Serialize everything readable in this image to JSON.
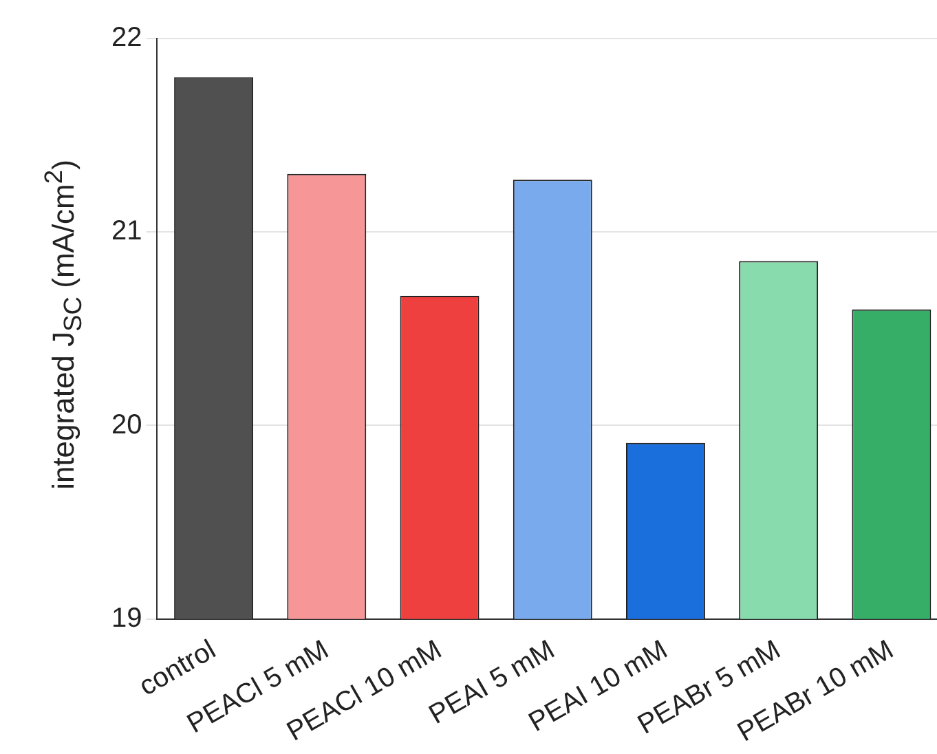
{
  "chart_data": {
    "type": "bar",
    "ylabel": "integrated J$_{SC}$ (mA/cm$^{2}$)",
    "categories": [
      "control",
      "PEACl 5 mM",
      "PEACl 10 mM",
      "PEAI 5 mM",
      "PEAI 10 mM",
      "PEABr 5 mM",
      "PEABr 10 mM"
    ],
    "values": [
      21.8,
      21.3,
      20.67,
      21.27,
      19.91,
      20.85,
      20.6
    ],
    "colors": [
      "#505050",
      "#f79696",
      "#ef4040",
      "#79aaee",
      "#1a6fdd",
      "#88dbad",
      "#36ae68"
    ],
    "ylim": [
      19,
      22
    ],
    "yticks": [
      19,
      20,
      21,
      22
    ],
    "grid": "y",
    "legend": false
  }
}
